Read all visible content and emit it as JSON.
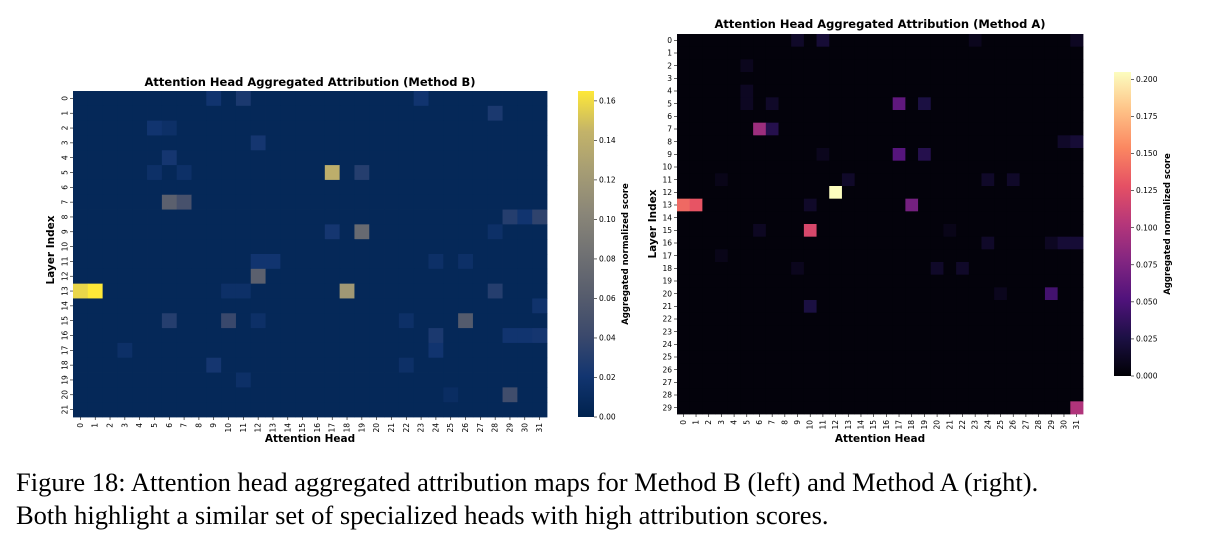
{
  "figure": {
    "caption_line1": "Figure 18: Attention head aggregated attribution maps for Method B (left) and Method A (right).",
    "caption_line2": "Both highlight a similar set of specialized heads with high attribution scores."
  },
  "chart_data": [
    {
      "type": "heatmap",
      "title": "Attention Head Aggregated Attribution (Method B)",
      "xlabel": "Attention Head",
      "ylabel": "Layer Index",
      "colorbar_label": "Aggregated normalized score",
      "colormap": "cividis",
      "n_x": 32,
      "n_y": 22,
      "x_ticks": [
        "0",
        "1",
        "2",
        "3",
        "4",
        "5",
        "6",
        "7",
        "8",
        "9",
        "10",
        "11",
        "12",
        "13",
        "14",
        "15",
        "16",
        "17",
        "18",
        "19",
        "20",
        "21",
        "22",
        "23",
        "24",
        "25",
        "26",
        "27",
        "28",
        "29",
        "30",
        "31"
      ],
      "y_ticks": [
        "0",
        "1",
        "2",
        "3",
        "4",
        "5",
        "6",
        "7",
        "8",
        "9",
        "10",
        "11",
        "12",
        "13",
        "14",
        "15",
        "16",
        "17",
        "18",
        "19",
        "20",
        "21"
      ],
      "vmin": 0,
      "vmax": 0.165,
      "colorbar_ticks": [
        "0.00",
        "0.02",
        "0.04",
        "0.06",
        "0.08",
        "0.10",
        "0.12",
        "0.14",
        "0.16"
      ],
      "background_value": 0.006,
      "cells": [
        {
          "layer": 0,
          "head": 9,
          "value": 0.02
        },
        {
          "layer": 0,
          "head": 11,
          "value": 0.025
        },
        {
          "layer": 0,
          "head": 23,
          "value": 0.02
        },
        {
          "layer": 1,
          "head": 28,
          "value": 0.025
        },
        {
          "layer": 2,
          "head": 5,
          "value": 0.02
        },
        {
          "layer": 2,
          "head": 6,
          "value": 0.015
        },
        {
          "layer": 3,
          "head": 12,
          "value": 0.022
        },
        {
          "layer": 4,
          "head": 6,
          "value": 0.022
        },
        {
          "layer": 5,
          "head": 17,
          "value": 0.14
        },
        {
          "layer": 5,
          "head": 19,
          "value": 0.03
        },
        {
          "layer": 5,
          "head": 5,
          "value": 0.015
        },
        {
          "layer": 5,
          "head": 7,
          "value": 0.015
        },
        {
          "layer": 7,
          "head": 6,
          "value": 0.065
        },
        {
          "layer": 7,
          "head": 7,
          "value": 0.05
        },
        {
          "layer": 8,
          "head": 29,
          "value": 0.03
        },
        {
          "layer": 8,
          "head": 30,
          "value": 0.02
        },
        {
          "layer": 8,
          "head": 31,
          "value": 0.035
        },
        {
          "layer": 9,
          "head": 17,
          "value": 0.022
        },
        {
          "layer": 9,
          "head": 19,
          "value": 0.075
        },
        {
          "layer": 9,
          "head": 28,
          "value": 0.015
        },
        {
          "layer": 11,
          "head": 12,
          "value": 0.02
        },
        {
          "layer": 11,
          "head": 13,
          "value": 0.02
        },
        {
          "layer": 11,
          "head": 24,
          "value": 0.015
        },
        {
          "layer": 11,
          "head": 26,
          "value": 0.015
        },
        {
          "layer": 12,
          "head": 12,
          "value": 0.065
        },
        {
          "layer": 13,
          "head": 0,
          "value": 0.158
        },
        {
          "layer": 13,
          "head": 1,
          "value": 0.165
        },
        {
          "layer": 13,
          "head": 18,
          "value": 0.12
        },
        {
          "layer": 13,
          "head": 28,
          "value": 0.03
        },
        {
          "layer": 13,
          "head": 10,
          "value": 0.015
        },
        {
          "layer": 13,
          "head": 11,
          "value": 0.015
        },
        {
          "layer": 14,
          "head": 31,
          "value": 0.018
        },
        {
          "layer": 15,
          "head": 6,
          "value": 0.03
        },
        {
          "layer": 15,
          "head": 10,
          "value": 0.04
        },
        {
          "layer": 15,
          "head": 26,
          "value": 0.06
        },
        {
          "layer": 15,
          "head": 22,
          "value": 0.015
        },
        {
          "layer": 15,
          "head": 12,
          "value": 0.015
        },
        {
          "layer": 16,
          "head": 24,
          "value": 0.025
        },
        {
          "layer": 16,
          "head": 29,
          "value": 0.02
        },
        {
          "layer": 16,
          "head": 30,
          "value": 0.02
        },
        {
          "layer": 16,
          "head": 31,
          "value": 0.022
        },
        {
          "layer": 17,
          "head": 24,
          "value": 0.02
        },
        {
          "layer": 17,
          "head": 3,
          "value": 0.015
        },
        {
          "layer": 18,
          "head": 9,
          "value": 0.022
        },
        {
          "layer": 18,
          "head": 22,
          "value": 0.015
        },
        {
          "layer": 19,
          "head": 11,
          "value": 0.015
        },
        {
          "layer": 20,
          "head": 29,
          "value": 0.045
        },
        {
          "layer": 20,
          "head": 25,
          "value": 0.012
        }
      ]
    },
    {
      "type": "heatmap",
      "title": "Attention Head Aggregated Attribution (Method A)",
      "xlabel": "Attention Head",
      "ylabel": "Layer Index",
      "colorbar_label": "Aggregated normalized score",
      "colormap": "magma",
      "n_x": 32,
      "n_y": 30,
      "x_ticks": [
        "0",
        "1",
        "2",
        "3",
        "4",
        "5",
        "6",
        "7",
        "8",
        "9",
        "10",
        "11",
        "12",
        "13",
        "14",
        "15",
        "16",
        "17",
        "18",
        "19",
        "20",
        "21",
        "22",
        "23",
        "24",
        "25",
        "26",
        "27",
        "28",
        "29",
        "30",
        "31"
      ],
      "y_ticks": [
        "0",
        "1",
        "2",
        "3",
        "4",
        "5",
        "6",
        "7",
        "8",
        "9",
        "10",
        "11",
        "12",
        "13",
        "14",
        "15",
        "16",
        "17",
        "18",
        "19",
        "20",
        "21",
        "22",
        "23",
        "24",
        "25",
        "26",
        "27",
        "28",
        "29"
      ],
      "vmin": 0,
      "vmax": 0.205,
      "colorbar_ticks": [
        "0.000",
        "0.025",
        "0.050",
        "0.075",
        "0.100",
        "0.125",
        "0.150",
        "0.175",
        "0.200"
      ],
      "background_value": 0.003,
      "cells": [
        {
          "layer": 0,
          "head": 9,
          "value": 0.015
        },
        {
          "layer": 0,
          "head": 11,
          "value": 0.02
        },
        {
          "layer": 0,
          "head": 23,
          "value": 0.01
        },
        {
          "layer": 0,
          "head": 31,
          "value": 0.012
        },
        {
          "layer": 2,
          "head": 5,
          "value": 0.01
        },
        {
          "layer": 4,
          "head": 5,
          "value": 0.012
        },
        {
          "layer": 5,
          "head": 17,
          "value": 0.06
        },
        {
          "layer": 5,
          "head": 19,
          "value": 0.025
        },
        {
          "layer": 5,
          "head": 7,
          "value": 0.015
        },
        {
          "layer": 5,
          "head": 5,
          "value": 0.012
        },
        {
          "layer": 7,
          "head": 6,
          "value": 0.09
        },
        {
          "layer": 7,
          "head": 7,
          "value": 0.03
        },
        {
          "layer": 8,
          "head": 30,
          "value": 0.015
        },
        {
          "layer": 8,
          "head": 31,
          "value": 0.02
        },
        {
          "layer": 9,
          "head": 17,
          "value": 0.055
        },
        {
          "layer": 9,
          "head": 19,
          "value": 0.03
        },
        {
          "layer": 9,
          "head": 11,
          "value": 0.01
        },
        {
          "layer": 11,
          "head": 13,
          "value": 0.015
        },
        {
          "layer": 11,
          "head": 24,
          "value": 0.015
        },
        {
          "layer": 11,
          "head": 26,
          "value": 0.015
        },
        {
          "layer": 11,
          "head": 3,
          "value": 0.008
        },
        {
          "layer": 12,
          "head": 12,
          "value": 0.205
        },
        {
          "layer": 13,
          "head": 0,
          "value": 0.14
        },
        {
          "layer": 13,
          "head": 1,
          "value": 0.13
        },
        {
          "layer": 13,
          "head": 18,
          "value": 0.07
        },
        {
          "layer": 13,
          "head": 10,
          "value": 0.015
        },
        {
          "layer": 15,
          "head": 10,
          "value": 0.12
        },
        {
          "layer": 15,
          "head": 6,
          "value": 0.012
        },
        {
          "layer": 15,
          "head": 21,
          "value": 0.008
        },
        {
          "layer": 16,
          "head": 24,
          "value": 0.015
        },
        {
          "layer": 16,
          "head": 29,
          "value": 0.012
        },
        {
          "layer": 16,
          "head": 30,
          "value": 0.02
        },
        {
          "layer": 16,
          "head": 31,
          "value": 0.02
        },
        {
          "layer": 17,
          "head": 3,
          "value": 0.008
        },
        {
          "layer": 18,
          "head": 20,
          "value": 0.015
        },
        {
          "layer": 18,
          "head": 22,
          "value": 0.015
        },
        {
          "layer": 18,
          "head": 9,
          "value": 0.01
        },
        {
          "layer": 20,
          "head": 29,
          "value": 0.045
        },
        {
          "layer": 20,
          "head": 25,
          "value": 0.01
        },
        {
          "layer": 21,
          "head": 10,
          "value": 0.025
        },
        {
          "layer": 29,
          "head": 31,
          "value": 0.1
        }
      ]
    }
  ]
}
